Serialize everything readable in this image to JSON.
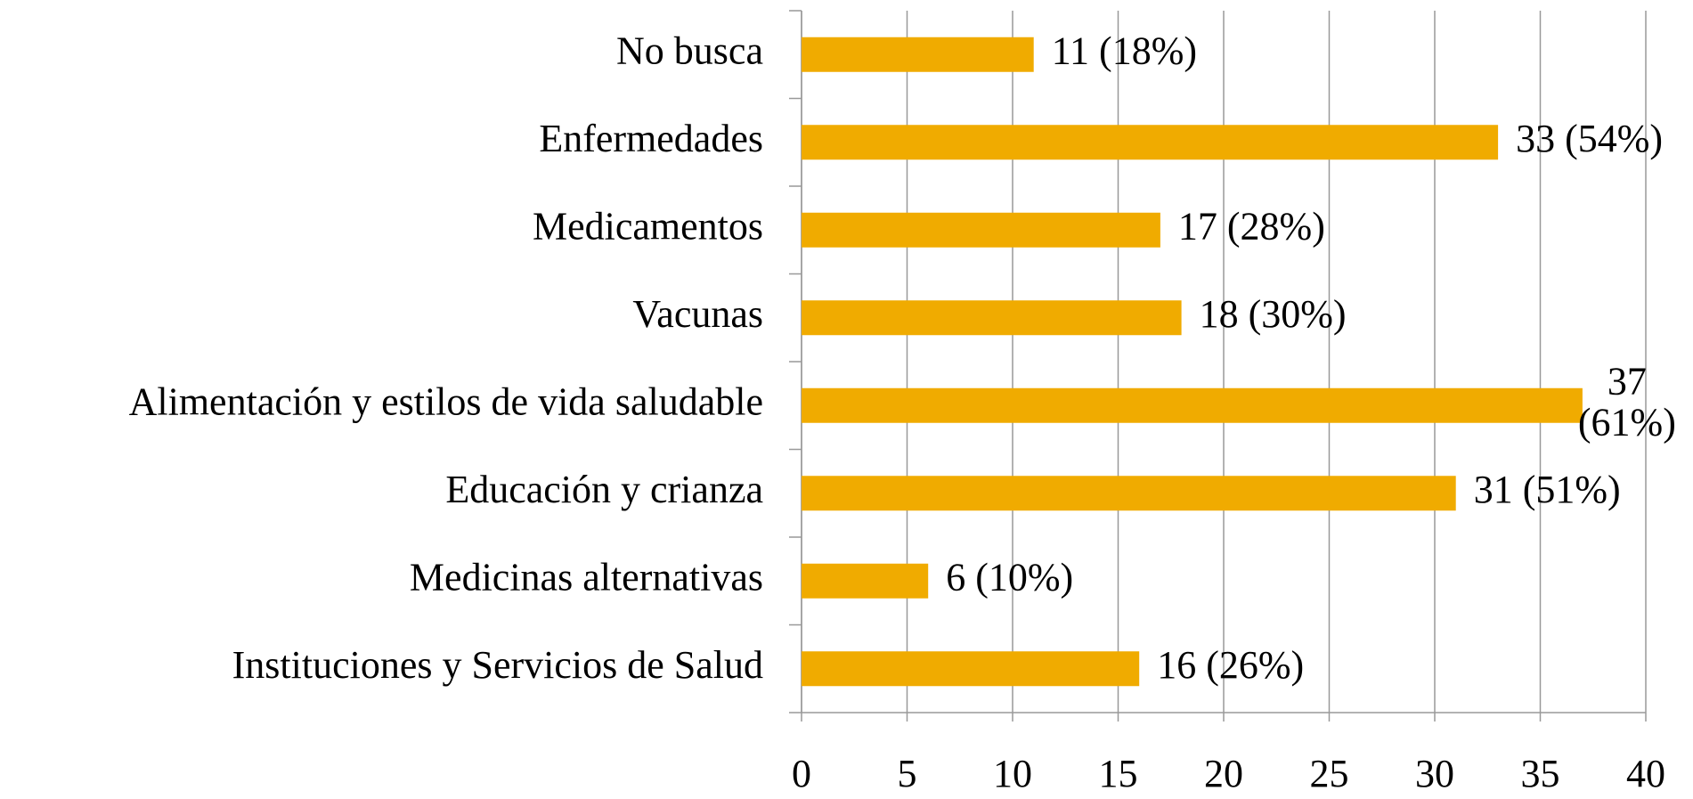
{
  "chart_data": {
    "type": "hbar",
    "categories": [
      "No busca",
      "Enfermedades",
      "Medicamentos",
      "Vacunas",
      "Alimentación y estilos de vida saludable",
      "Educación y crianza",
      "Medicinas alternativas",
      "Instituciones y Servicios de Salud"
    ],
    "values": [
      11,
      33,
      17,
      18,
      37,
      31,
      6,
      16
    ],
    "value_labels": [
      "11 (18%)",
      "33 (54%)",
      "17 (28%)",
      "18 (30%)",
      "37 (61%)",
      "31 (51%)",
      "6 (10%)",
      "16 (26%)"
    ],
    "color": "#f0ab00",
    "xlim": [
      0,
      40
    ],
    "xticks": [
      0,
      5,
      10,
      15,
      20,
      25,
      30,
      35,
      40
    ],
    "grid": true
  }
}
